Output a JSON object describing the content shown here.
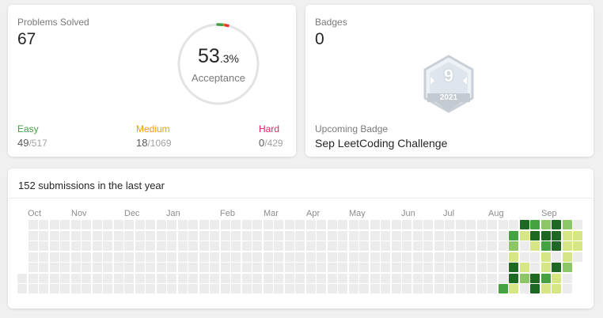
{
  "problems": {
    "title": "Problems Solved",
    "solved": "67",
    "acceptance_main": "53",
    "acceptance_decimal": ".3%",
    "acceptance_label": "Acceptance",
    "easy": {
      "label": "Easy",
      "solved": "49",
      "total": "/517",
      "color": "#43a047"
    },
    "medium": {
      "label": "Medium",
      "solved": "18",
      "total": "/1069",
      "color": "#ef9f00"
    },
    "hard": {
      "label": "Hard",
      "solved": "0",
      "total": "/429",
      "color": "#e91e63"
    }
  },
  "badges": {
    "title": "Badges",
    "count": "0",
    "badge_number": "9",
    "badge_year": "2021",
    "upcoming_label": "Upcoming Badge",
    "upcoming_name": "Sep LeetCoding Challenge"
  },
  "calendar": {
    "title": "152 submissions in the last year",
    "months": [
      "Oct",
      "Nov",
      "Dec",
      "Jan",
      "Feb",
      "Mar",
      "Apr",
      "May",
      "Jun",
      "Jul",
      "Aug",
      "Sep"
    ],
    "colors": {
      "empty": "#ececec",
      "l1": "#d6e685",
      "l2": "#8cc665",
      "l3": "#44a340",
      "l4": "#1e6823"
    }
  }
}
